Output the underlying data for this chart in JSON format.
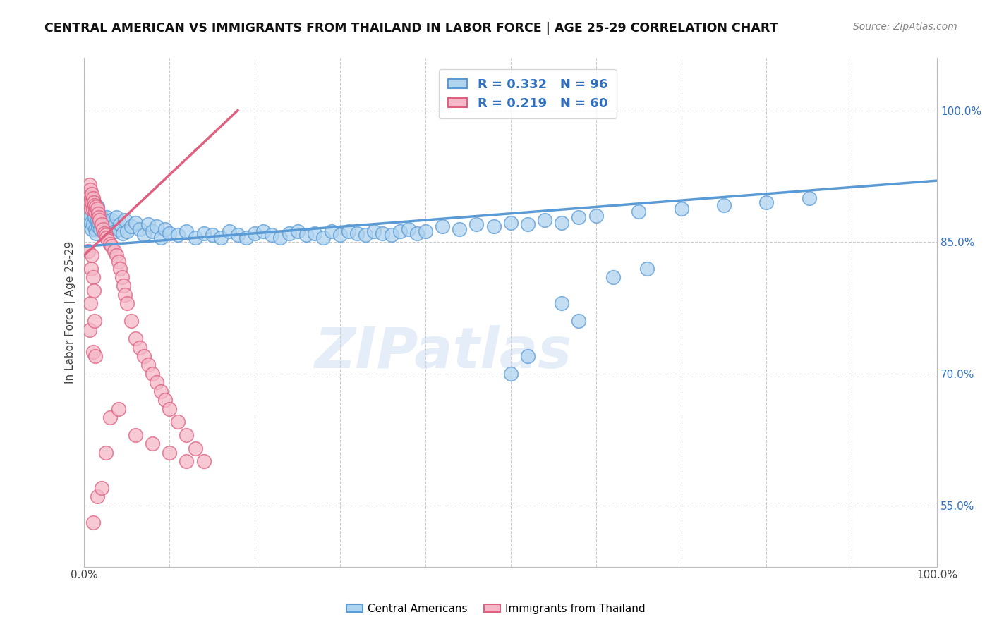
{
  "title": "CENTRAL AMERICAN VS IMMIGRANTS FROM THAILAND IN LABOR FORCE | AGE 25-29 CORRELATION CHART",
  "source_text": "Source: ZipAtlas.com",
  "ylabel": "In Labor Force | Age 25-29",
  "xlim": [
    0.0,
    1.0
  ],
  "ylim": [
    0.48,
    1.06
  ],
  "x_ticks": [
    0.0,
    0.1,
    0.2,
    0.3,
    0.4,
    0.5,
    0.6,
    0.7,
    0.8,
    0.9,
    1.0
  ],
  "y_tick_labels_right": [
    "55.0%",
    "70.0%",
    "85.0%",
    "100.0%"
  ],
  "y_ticks_right": [
    0.55,
    0.7,
    0.85,
    1.0
  ],
  "blue_R": 0.332,
  "blue_N": 96,
  "pink_R": 0.219,
  "pink_N": 60,
  "blue_color": "#afd4f0",
  "blue_edge_color": "#5b9bd5",
  "pink_color": "#f4b8c8",
  "pink_edge_color": "#e06080",
  "watermark": "ZIPatlas",
  "blue_scatter_x": [
    0.005,
    0.007,
    0.008,
    0.009,
    0.01,
    0.01,
    0.011,
    0.012,
    0.012,
    0.013,
    0.014,
    0.015,
    0.015,
    0.016,
    0.017,
    0.018,
    0.019,
    0.02,
    0.021,
    0.022,
    0.023,
    0.024,
    0.025,
    0.026,
    0.028,
    0.03,
    0.032,
    0.034,
    0.036,
    0.038,
    0.04,
    0.042,
    0.045,
    0.048,
    0.05,
    0.055,
    0.06,
    0.065,
    0.07,
    0.075,
    0.08,
    0.085,
    0.09,
    0.095,
    0.1,
    0.11,
    0.12,
    0.13,
    0.14,
    0.15,
    0.16,
    0.17,
    0.18,
    0.19,
    0.2,
    0.21,
    0.22,
    0.23,
    0.24,
    0.25,
    0.26,
    0.27,
    0.28,
    0.29,
    0.3,
    0.31,
    0.32,
    0.33,
    0.34,
    0.35,
    0.36,
    0.37,
    0.38,
    0.39,
    0.4,
    0.42,
    0.44,
    0.46,
    0.48,
    0.5,
    0.52,
    0.54,
    0.56,
    0.58,
    0.6,
    0.65,
    0.7,
    0.75,
    0.8,
    0.85,
    0.5,
    0.52,
    0.56,
    0.58,
    0.62,
    0.66
  ],
  "blue_scatter_y": [
    0.875,
    0.88,
    0.872,
    0.865,
    0.895,
    0.87,
    0.882,
    0.888,
    0.878,
    0.865,
    0.86,
    0.875,
    0.89,
    0.868,
    0.872,
    0.88,
    0.865,
    0.878,
    0.87,
    0.875,
    0.868,
    0.872,
    0.86,
    0.878,
    0.865,
    0.87,
    0.875,
    0.868,
    0.862,
    0.878,
    0.865,
    0.87,
    0.86,
    0.875,
    0.862,
    0.868,
    0.872,
    0.865,
    0.858,
    0.87,
    0.862,
    0.868,
    0.855,
    0.865,
    0.86,
    0.858,
    0.862,
    0.855,
    0.86,
    0.858,
    0.855,
    0.862,
    0.858,
    0.855,
    0.86,
    0.862,
    0.858,
    0.855,
    0.86,
    0.862,
    0.858,
    0.86,
    0.855,
    0.862,
    0.858,
    0.862,
    0.86,
    0.858,
    0.862,
    0.86,
    0.858,
    0.862,
    0.865,
    0.86,
    0.862,
    0.868,
    0.865,
    0.87,
    0.868,
    0.872,
    0.87,
    0.875,
    0.872,
    0.878,
    0.88,
    0.885,
    0.888,
    0.892,
    0.895,
    0.9,
    0.7,
    0.72,
    0.78,
    0.76,
    0.81,
    0.82
  ],
  "pink_scatter_x": [
    0.005,
    0.005,
    0.006,
    0.006,
    0.007,
    0.007,
    0.008,
    0.008,
    0.009,
    0.009,
    0.01,
    0.01,
    0.011,
    0.012,
    0.013,
    0.014,
    0.015,
    0.016,
    0.017,
    0.018,
    0.02,
    0.022,
    0.024,
    0.025,
    0.026,
    0.028,
    0.03,
    0.032,
    0.035,
    0.038,
    0.04,
    0.042,
    0.044,
    0.046,
    0.048,
    0.05,
    0.055,
    0.06,
    0.065,
    0.07,
    0.075,
    0.08,
    0.085,
    0.09,
    0.095,
    0.1,
    0.11,
    0.12,
    0.13,
    0.14,
    0.005,
    0.006,
    0.007,
    0.008,
    0.009,
    0.01,
    0.01,
    0.011,
    0.012,
    0.013
  ],
  "pink_scatter_y": [
    0.9,
    0.895,
    0.905,
    0.915,
    0.895,
    0.91,
    0.9,
    0.888,
    0.905,
    0.895,
    0.9,
    0.888,
    0.895,
    0.892,
    0.885,
    0.89,
    0.888,
    0.882,
    0.878,
    0.875,
    0.87,
    0.865,
    0.86,
    0.858,
    0.855,
    0.852,
    0.848,
    0.845,
    0.84,
    0.835,
    0.828,
    0.82,
    0.81,
    0.8,
    0.79,
    0.78,
    0.76,
    0.74,
    0.73,
    0.72,
    0.71,
    0.7,
    0.69,
    0.68,
    0.67,
    0.66,
    0.645,
    0.63,
    0.615,
    0.6,
    0.84,
    0.75,
    0.78,
    0.82,
    0.835,
    0.725,
    0.81,
    0.795,
    0.76,
    0.72
  ],
  "pink_outliers_x": [
    0.01,
    0.015,
    0.02,
    0.025,
    0.03,
    0.04,
    0.06,
    0.08,
    0.1,
    0.12
  ],
  "pink_outliers_y": [
    0.53,
    0.56,
    0.57,
    0.61,
    0.65,
    0.66,
    0.63,
    0.62,
    0.61,
    0.6
  ]
}
